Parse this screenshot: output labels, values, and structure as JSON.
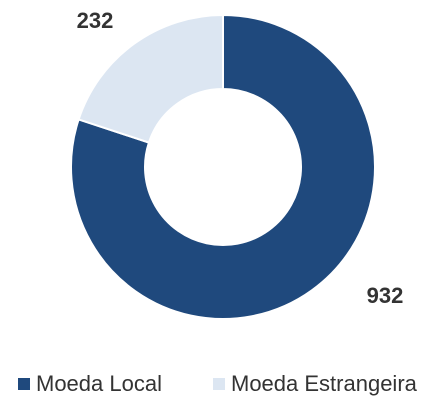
{
  "chart_data": {
    "type": "donut",
    "categories": [
      "Moeda Local",
      "Moeda Estrangeira"
    ],
    "values": [
      932,
      232
    ],
    "colors": [
      "#1f497d",
      "#dce6f2"
    ]
  }
}
